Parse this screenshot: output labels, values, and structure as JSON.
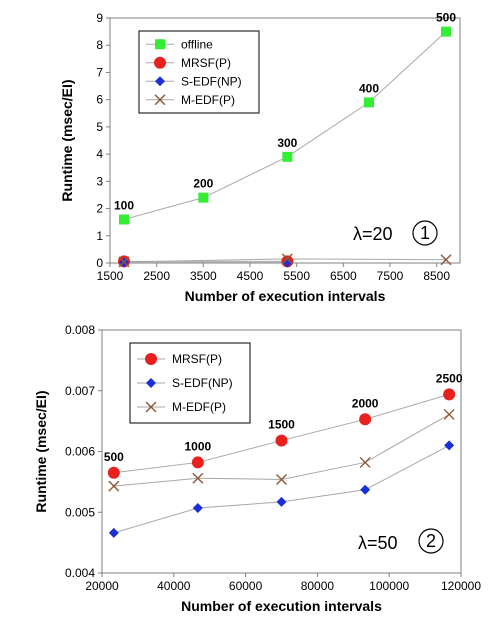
{
  "chart_data": [
    {
      "type": "line",
      "xlabel": "Number of execution intervals",
      "ylabel": "Runtime (msec/EI)",
      "xlim": [
        1500,
        9000
      ],
      "ylim": [
        0,
        9
      ],
      "xticks": [
        "1500",
        "2500",
        "3500",
        "4500",
        "5500",
        "6500",
        "7500",
        "8500"
      ],
      "yticks": [
        "0",
        "1",
        "2",
        "3",
        "4",
        "5",
        "6",
        "7",
        "8",
        "9"
      ],
      "grid": false,
      "legend_position": "top-left",
      "annotation_lambda": "λ=20",
      "annotation_circle": "1",
      "series": [
        {
          "name": "offline",
          "marker": "square",
          "color": "#33ee33",
          "x": [
            1800,
            3500,
            5300,
            7050,
            8700
          ],
          "values": [
            1.6,
            2.4,
            3.9,
            5.9,
            8.5
          ],
          "data_labels": [
            "100",
            "200",
            "300",
            "400",
            "500"
          ]
        },
        {
          "name": "MRSF(P)",
          "marker": "circle",
          "color": "#e8211f",
          "x": [
            1800,
            5300
          ],
          "values": [
            0.06,
            0.06
          ]
        },
        {
          "name": "S-EDF(NP)",
          "marker": "diamond",
          "color": "#1a2fd6",
          "x": [
            1800,
            5300
          ],
          "values": [
            0.02,
            0.02
          ]
        },
        {
          "name": "M-EDF(P)",
          "marker": "cross",
          "color": "#8a5a3a",
          "x": [
            1800,
            5300,
            8700
          ],
          "values": [
            0.04,
            0.15,
            0.12
          ]
        }
      ]
    },
    {
      "type": "line",
      "xlabel": "Number of execution intervals",
      "ylabel": "Runtime (msec/EI)",
      "xlim": [
        20000,
        120000
      ],
      "ylim": [
        0.004,
        0.008
      ],
      "xticks": [
        "20000",
        "40000",
        "60000",
        "80000",
        "100000",
        "120000"
      ],
      "yticks": [
        "0.004",
        "0.005",
        "0.006",
        "0.007",
        "0.008"
      ],
      "grid": false,
      "legend_position": "top-left",
      "annotation_lambda": "λ=50",
      "annotation_circle": "2",
      "series": [
        {
          "name": "MRSF(P)",
          "marker": "circle",
          "color": "#e8211f",
          "x": [
            23300,
            46700,
            70000,
            93300,
            116700
          ],
          "values": [
            0.00565,
            0.00582,
            0.00618,
            0.00653,
            0.00694
          ],
          "data_labels": [
            "500",
            "1000",
            "1500",
            "2000",
            "2500"
          ]
        },
        {
          "name": "S-EDF(NP)",
          "marker": "diamond",
          "color": "#1a2fd6",
          "x": [
            23300,
            46700,
            70000,
            93300,
            116700
          ],
          "values": [
            0.00466,
            0.00507,
            0.00517,
            0.00537,
            0.0061
          ]
        },
        {
          "name": "M-EDF(P)",
          "marker": "cross",
          "color": "#8a5a3a",
          "x": [
            23300,
            46700,
            70000,
            93300,
            116700
          ],
          "values": [
            0.00543,
            0.00556,
            0.00554,
            0.00582,
            0.00661
          ]
        }
      ]
    }
  ]
}
